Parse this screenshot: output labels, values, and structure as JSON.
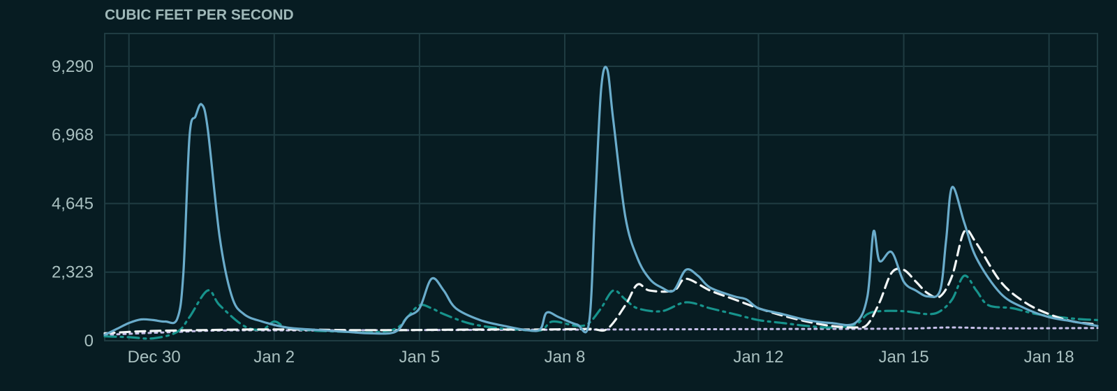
{
  "chart_data": {
    "type": "line",
    "ylabel": "CUBIC FEET PER SECOND",
    "xlabel": "",
    "title": "",
    "ylim": [
      0,
      10400
    ],
    "xlim": [
      "2023-12-29T12:00",
      "2024-01-19T00:00"
    ],
    "yticks": [
      {
        "value": 0,
        "label": "0"
      },
      {
        "value": 2323,
        "label": "2,323"
      },
      {
        "value": 4645,
        "label": "4,645"
      },
      {
        "value": 6968,
        "label": "6,968"
      },
      {
        "value": 9290,
        "label": "9,290"
      }
    ],
    "xticks": [
      {
        "x": "2023-12-30T00:00",
        "label": "Dec 30"
      },
      {
        "x": "2024-01-02T00:00",
        "label": "Jan 2"
      },
      {
        "x": "2024-01-05T00:00",
        "label": "Jan 5"
      },
      {
        "x": "2024-01-08T00:00",
        "label": "Jan 8"
      },
      {
        "x": "2024-01-12T00:00",
        "label": "Jan 12"
      },
      {
        "x": "2024-01-15T00:00",
        "label": "Jan 15"
      },
      {
        "x": "2024-01-18T00:00",
        "label": "Jan 18"
      }
    ],
    "grid": true,
    "legend": "none",
    "series": [
      {
        "style": "solid",
        "color": "#6aaccb",
        "points": [
          [
            "2023-12-29T12:00",
            200
          ],
          [
            "2023-12-29T18:00",
            400
          ],
          [
            "2023-12-30T00:00",
            600
          ],
          [
            "2023-12-30T06:00",
            720
          ],
          [
            "2023-12-30T12:00",
            700
          ],
          [
            "2023-12-30T18:00",
            650
          ],
          [
            "2023-12-31T00:00",
            750
          ],
          [
            "2023-12-31T03:00",
            2300
          ],
          [
            "2023-12-31T06:00",
            6900
          ],
          [
            "2023-12-31T09:00",
            7600
          ],
          [
            "2023-12-31T12:00",
            8000
          ],
          [
            "2023-12-31T15:00",
            7200
          ],
          [
            "2023-12-31T21:00",
            3500
          ],
          [
            "2024-01-01T03:00",
            1500
          ],
          [
            "2024-01-01T09:00",
            900
          ],
          [
            "2024-01-01T18:00",
            650
          ],
          [
            "2024-01-02T06:00",
            450
          ],
          [
            "2024-01-02T18:00",
            380
          ],
          [
            "2024-01-03T12:00",
            300
          ],
          [
            "2024-01-04T00:00",
            250
          ],
          [
            "2024-01-04T12:00",
            300
          ],
          [
            "2024-01-04T18:00",
            800
          ],
          [
            "2024-01-05T00:00",
            1100
          ],
          [
            "2024-01-05T06:00",
            2100
          ],
          [
            "2024-01-05T12:00",
            1700
          ],
          [
            "2024-01-05T18:00",
            1100
          ],
          [
            "2024-01-06T06:00",
            700
          ],
          [
            "2024-01-06T18:00",
            500
          ],
          [
            "2024-01-07T06:00",
            350
          ],
          [
            "2024-01-07T12:00",
            400
          ],
          [
            "2024-01-07T15:00",
            950
          ],
          [
            "2024-01-07T21:00",
            800
          ],
          [
            "2024-01-08T06:00",
            550
          ],
          [
            "2024-01-08T12:00",
            600
          ],
          [
            "2024-01-08T15:00",
            4500
          ],
          [
            "2024-01-08T18:00",
            8500
          ],
          [
            "2024-01-08T21:00",
            9200
          ],
          [
            "2024-01-09T00:00",
            7500
          ],
          [
            "2024-01-09T06:00",
            4200
          ],
          [
            "2024-01-09T12:00",
            2800
          ],
          [
            "2024-01-09T18:00",
            2100
          ],
          [
            "2024-01-10T00:00",
            1800
          ],
          [
            "2024-01-10T06:00",
            1700
          ],
          [
            "2024-01-10T12:00",
            2400
          ],
          [
            "2024-01-10T18:00",
            2200
          ],
          [
            "2024-01-11T00:00",
            1800
          ],
          [
            "2024-01-11T12:00",
            1500
          ],
          [
            "2024-01-11T18:00",
            1400
          ],
          [
            "2024-01-12T00:00",
            1100
          ],
          [
            "2024-01-12T12:00",
            900
          ],
          [
            "2024-01-13T00:00",
            700
          ],
          [
            "2024-01-13T12:00",
            600
          ],
          [
            "2024-01-14T00:00",
            600
          ],
          [
            "2024-01-14T06:00",
            1500
          ],
          [
            "2024-01-14T09:00",
            3700
          ],
          [
            "2024-01-14T12:00",
            2700
          ],
          [
            "2024-01-14T18:00",
            3000
          ],
          [
            "2024-01-15T00:00",
            2000
          ],
          [
            "2024-01-15T06:00",
            1700
          ],
          [
            "2024-01-15T12:00",
            1500
          ],
          [
            "2024-01-15T18:00",
            1700
          ],
          [
            "2024-01-15T21:00",
            3400
          ],
          [
            "2024-01-16T00:00",
            5200
          ],
          [
            "2024-01-16T06:00",
            4000
          ],
          [
            "2024-01-16T12:00",
            2800
          ],
          [
            "2024-01-17T00:00",
            1600
          ],
          [
            "2024-01-17T12:00",
            1100
          ],
          [
            "2024-01-18T00:00",
            800
          ],
          [
            "2024-01-18T12:00",
            650
          ],
          [
            "2024-01-19T00:00",
            500
          ]
        ]
      },
      {
        "style": "dashdot",
        "color": "#17938c",
        "points": [
          [
            "2023-12-29T12:00",
            150
          ],
          [
            "2023-12-30T00:00",
            120
          ],
          [
            "2023-12-30T12:00",
            80
          ],
          [
            "2023-12-31T00:00",
            300
          ],
          [
            "2023-12-31T06:00",
            800
          ],
          [
            "2023-12-31T15:00",
            1700
          ],
          [
            "2023-12-31T21:00",
            1200
          ],
          [
            "2024-01-01T09:00",
            500
          ],
          [
            "2024-01-01T18:00",
            380
          ],
          [
            "2024-01-02T00:00",
            650
          ],
          [
            "2024-01-02T06:00",
            450
          ],
          [
            "2024-01-02T18:00",
            350
          ],
          [
            "2024-01-03T12:00",
            300
          ],
          [
            "2024-01-04T00:00",
            280
          ],
          [
            "2024-01-04T12:00",
            400
          ],
          [
            "2024-01-04T18:00",
            800
          ],
          [
            "2024-01-05T00:00",
            1200
          ],
          [
            "2024-01-05T06:00",
            1100
          ],
          [
            "2024-01-05T12:00",
            900
          ],
          [
            "2024-01-06T00:00",
            600
          ],
          [
            "2024-01-06T12:00",
            450
          ],
          [
            "2024-01-07T00:00",
            380
          ],
          [
            "2024-01-07T12:00",
            350
          ],
          [
            "2024-01-07T18:00",
            650
          ],
          [
            "2024-01-08T06:00",
            500
          ],
          [
            "2024-01-08T12:00",
            600
          ],
          [
            "2024-01-08T18:00",
            1100
          ],
          [
            "2024-01-09T00:00",
            1700
          ],
          [
            "2024-01-09T06:00",
            1400
          ],
          [
            "2024-01-09T12:00",
            1100
          ],
          [
            "2024-01-10T00:00",
            1000
          ],
          [
            "2024-01-10T12:00",
            1300
          ],
          [
            "2024-01-11T00:00",
            1100
          ],
          [
            "2024-01-11T12:00",
            900
          ],
          [
            "2024-01-12T00:00",
            700
          ],
          [
            "2024-01-12T12:00",
            600
          ],
          [
            "2024-01-13T00:00",
            500
          ],
          [
            "2024-01-13T12:00",
            450
          ],
          [
            "2024-01-14T00:00",
            550
          ],
          [
            "2024-01-14T06:00",
            900
          ],
          [
            "2024-01-14T12:00",
            1000
          ],
          [
            "2024-01-15T00:00",
            1000
          ],
          [
            "2024-01-15T12:00",
            900
          ],
          [
            "2024-01-15T18:00",
            1000
          ],
          [
            "2024-01-16T00:00",
            1400
          ],
          [
            "2024-01-16T06:00",
            2200
          ],
          [
            "2024-01-16T12:00",
            1700
          ],
          [
            "2024-01-16T18:00",
            1200
          ],
          [
            "2024-01-17T06:00",
            1100
          ],
          [
            "2024-01-17T18:00",
            900
          ],
          [
            "2024-01-18T12:00",
            750
          ],
          [
            "2024-01-19T00:00",
            700
          ]
        ]
      },
      {
        "style": "dashed",
        "color": "#f2f6f6",
        "points": [
          [
            "2023-12-29T12:00",
            250
          ],
          [
            "2023-12-30T00:00",
            300
          ],
          [
            "2023-12-30T12:00",
            330
          ],
          [
            "2023-12-31T12:00",
            360
          ],
          [
            "2024-01-01T12:00",
            380
          ],
          [
            "2024-01-02T12:00",
            380
          ],
          [
            "2024-01-03T12:00",
            360
          ],
          [
            "2024-01-04T12:00",
            360
          ],
          [
            "2024-01-05T12:00",
            370
          ],
          [
            "2024-01-06T12:00",
            380
          ],
          [
            "2024-01-07T12:00",
            380
          ],
          [
            "2024-01-08T12:00",
            400
          ],
          [
            "2024-01-08T21:00",
            400
          ],
          [
            "2024-01-09T06:00",
            1200
          ],
          [
            "2024-01-09T12:00",
            1900
          ],
          [
            "2024-01-09T18:00",
            1700
          ],
          [
            "2024-01-10T06:00",
            1700
          ],
          [
            "2024-01-10T12:00",
            2100
          ],
          [
            "2024-01-11T00:00",
            1700
          ],
          [
            "2024-01-11T12:00",
            1400
          ],
          [
            "2024-01-12T00:00",
            1100
          ],
          [
            "2024-01-12T12:00",
            850
          ],
          [
            "2024-01-13T00:00",
            650
          ],
          [
            "2024-01-13T12:00",
            500
          ],
          [
            "2024-01-14T00:00",
            450
          ],
          [
            "2024-01-14T06:00",
            550
          ],
          [
            "2024-01-14T12:00",
            1300
          ],
          [
            "2024-01-14T18:00",
            2300
          ],
          [
            "2024-01-15T00:00",
            2400
          ],
          [
            "2024-01-15T06:00",
            2000
          ],
          [
            "2024-01-15T12:00",
            1600
          ],
          [
            "2024-01-15T18:00",
            1500
          ],
          [
            "2024-01-16T00:00",
            2200
          ],
          [
            "2024-01-16T06:00",
            3700
          ],
          [
            "2024-01-16T12:00",
            3300
          ],
          [
            "2024-01-17T00:00",
            2000
          ],
          [
            "2024-01-17T12:00",
            1300
          ],
          [
            "2024-01-18T00:00",
            900
          ],
          [
            "2024-01-18T12:00",
            650
          ],
          [
            "2024-01-19T00:00",
            550
          ]
        ]
      },
      {
        "style": "dotted",
        "color": "#c6bfe8",
        "points": [
          [
            "2023-12-29T12:00",
            200
          ],
          [
            "2023-12-31T00:00",
            300
          ],
          [
            "2024-01-01T00:00",
            350
          ],
          [
            "2024-01-03T00:00",
            350
          ],
          [
            "2024-01-05T00:00",
            360
          ],
          [
            "2024-01-07T00:00",
            370
          ],
          [
            "2024-01-09T00:00",
            380
          ],
          [
            "2024-01-11T00:00",
            390
          ],
          [
            "2024-01-13T00:00",
            400
          ],
          [
            "2024-01-15T00:00",
            410
          ],
          [
            "2024-01-16T00:00",
            450
          ],
          [
            "2024-01-17T00:00",
            420
          ],
          [
            "2024-01-19T00:00",
            430
          ]
        ]
      }
    ]
  }
}
